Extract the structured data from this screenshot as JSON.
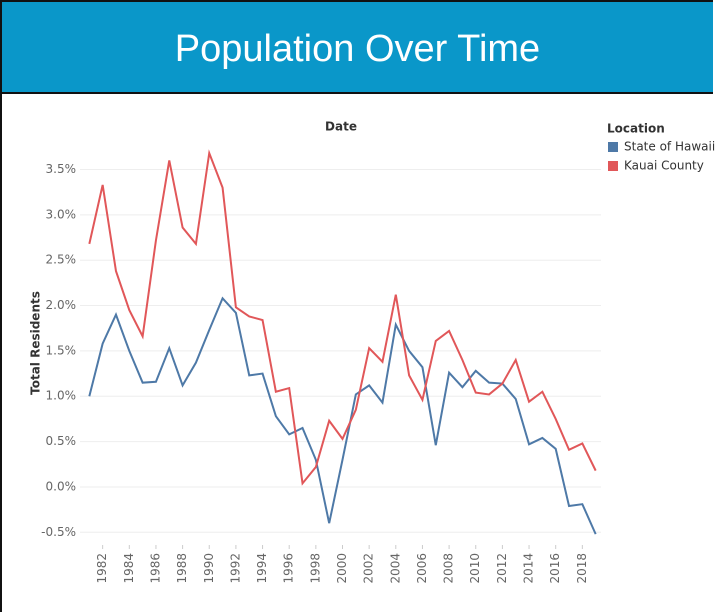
{
  "header": {
    "title": "Population Over Time"
  },
  "chart_data": {
    "type": "line",
    "x_label": "Date",
    "y_label": "Total Residents",
    "legend_title": "Location",
    "legend": "right",
    "x": [
      1981,
      1982,
      1983,
      1984,
      1985,
      1986,
      1987,
      1988,
      1989,
      1990,
      1991,
      1992,
      1993,
      1994,
      1995,
      1996,
      1997,
      1998,
      1999,
      2000,
      2001,
      2002,
      2003,
      2004,
      2005,
      2006,
      2007,
      2008,
      2009,
      2010,
      2011,
      2012,
      2013,
      2014,
      2015,
      2016,
      2017,
      2018,
      2019
    ],
    "series": [
      {
        "name": "State of Hawaii",
        "color": "#4e79a7",
        "values": [
          1.0,
          1.58,
          1.9,
          1.5,
          1.15,
          1.16,
          1.53,
          1.12,
          1.37,
          1.73,
          2.08,
          1.92,
          1.23,
          1.25,
          0.78,
          0.58,
          0.65,
          0.3,
          -0.4,
          0.3,
          1.02,
          1.12,
          0.93,
          1.79,
          1.5,
          1.32,
          0.46,
          1.26,
          1.1,
          1.28,
          1.15,
          1.14,
          0.97,
          0.47,
          0.54,
          0.42,
          -0.21,
          -0.19,
          -0.52
        ]
      },
      {
        "name": "Kauai County",
        "color": "#e15759",
        "values": [
          2.68,
          3.33,
          2.38,
          1.95,
          1.66,
          2.72,
          3.6,
          2.86,
          2.68,
          3.68,
          3.3,
          1.98,
          1.88,
          1.84,
          1.05,
          1.09,
          0.04,
          0.22,
          0.73,
          0.53,
          0.85,
          1.53,
          1.38,
          2.12,
          1.23,
          0.96,
          1.61,
          1.72,
          1.4,
          1.04,
          1.02,
          1.14,
          1.4,
          0.94,
          1.05,
          0.75,
          0.41,
          0.48,
          0.18
        ]
      }
    ],
    "xlim": [
      1980.3,
      2019.4
    ],
    "xticks": [
      1982,
      1984,
      1986,
      1988,
      1990,
      1992,
      1994,
      1996,
      1998,
      2000,
      2002,
      2004,
      2006,
      2008,
      2010,
      2012,
      2014,
      2016,
      2018
    ],
    "ylim": [
      -0.64,
      3.77
    ],
    "yticks": [
      {
        "value": -0.5,
        "label": "-0.5%"
      },
      {
        "value": 0,
        "label": "0.0%"
      },
      {
        "value": 0.5,
        "label": "0.5%"
      },
      {
        "value": 1.0,
        "label": "1.0%"
      },
      {
        "value": 1.5,
        "label": "1.5%"
      },
      {
        "value": 2.0,
        "label": "2.0%"
      },
      {
        "value": 2.5,
        "label": "2.5%"
      },
      {
        "value": 3.0,
        "label": "3.0%"
      },
      {
        "value": 3.5,
        "label": "3.5%"
      }
    ],
    "grid": true
  }
}
